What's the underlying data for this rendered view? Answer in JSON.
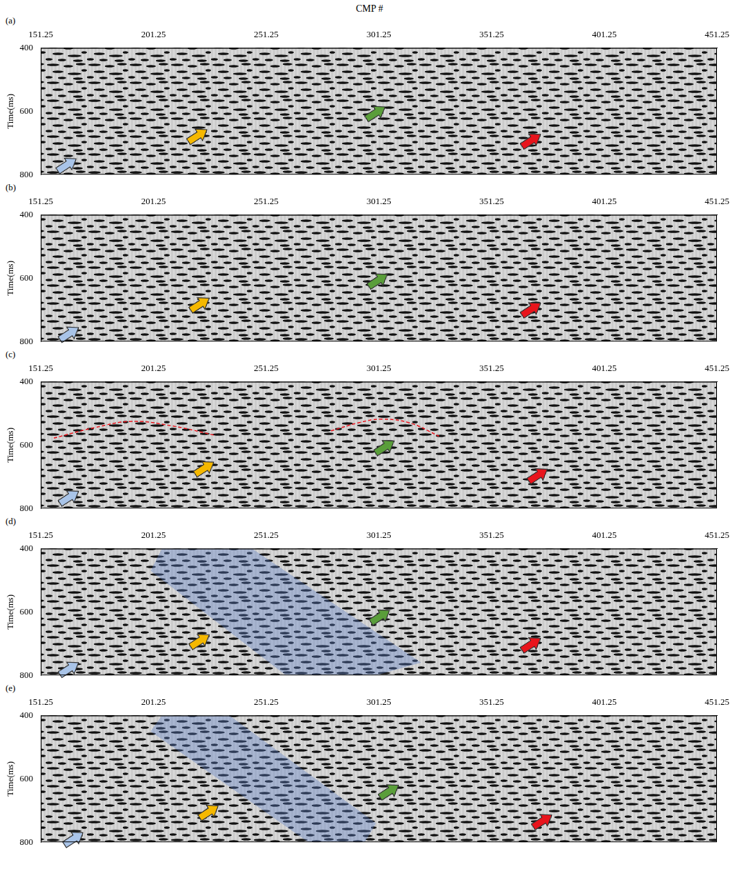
{
  "chart_data": [
    {
      "type": "seismic_section",
      "panel": "(a)",
      "x_label": "CMP #",
      "y_label": "Time(ms)",
      "xlim": [
        151.25,
        451.25
      ],
      "xticks": [
        151.25,
        201.25,
        251.25,
        301.25,
        351.25,
        401.25,
        451.25
      ],
      "ylim": [
        400,
        800
      ],
      "yticks": [
        400,
        600,
        800
      ],
      "grid": false,
      "arrows": [
        {
          "color": "#a9c4e8",
          "cmp": 167,
          "time": 750
        },
        {
          "color": "#f5b800",
          "cmp": 225,
          "time": 658
        },
        {
          "color": "#5a9e3a",
          "cmp": 304,
          "time": 586
        },
        {
          "color": "#e8141c",
          "cmp": 373,
          "time": 673
        }
      ]
    },
    {
      "type": "seismic_section",
      "panel": "(b)",
      "y_label": "Time(ms)",
      "xlim": [
        151.25,
        451.25
      ],
      "xticks": [
        151.25,
        201.25,
        251.25,
        301.25,
        351.25,
        401.25,
        451.25
      ],
      "ylim": [
        400,
        800
      ],
      "yticks": [
        400,
        600,
        800
      ],
      "grid": false,
      "arrows": [
        {
          "color": "#a9c4e8",
          "cmp": 168,
          "time": 756
        },
        {
          "color": "#f5b800",
          "cmp": 226,
          "time": 663
        },
        {
          "color": "#5a9e3a",
          "cmp": 305,
          "time": 588
        },
        {
          "color": "#e8141c",
          "cmp": 373,
          "time": 679
        }
      ]
    },
    {
      "type": "seismic_section",
      "panel": "(c)",
      "y_label": "Time(ms)",
      "xlim": [
        151.25,
        451.25
      ],
      "xticks": [
        151.25,
        201.25,
        251.25,
        301.25,
        351.25,
        401.25,
        451.25
      ],
      "ylim": [
        400,
        800
      ],
      "yticks": [
        400,
        600,
        800
      ],
      "grid": false,
      "arrows": [
        {
          "color": "#a9c4e8",
          "cmp": 168,
          "time": 746
        },
        {
          "color": "#f5b800",
          "cmp": 228,
          "time": 654
        },
        {
          "color": "#5a9e3a",
          "cmp": 308,
          "time": 587
        },
        {
          "color": "#e8141c",
          "cmp": 376,
          "time": 676
        }
      ],
      "curves": [
        {
          "color": "#e8141c",
          "line_style": "dashed",
          "x": [
            157,
            175,
            192,
            210,
            228
          ],
          "y": [
            578,
            545,
            525,
            540,
            568
          ]
        },
        {
          "color": "#e8141c",
          "line_style": "dashed",
          "x": [
            280,
            292,
            302,
            315,
            328
          ],
          "y": [
            555,
            530,
            518,
            530,
            572
          ]
        }
      ]
    },
    {
      "type": "seismic_section",
      "panel": "(d)",
      "y_label": "Time(ms)",
      "xlim": [
        151.25,
        451.25
      ],
      "xticks": [
        151.25,
        201.25,
        251.25,
        301.25,
        351.25,
        401.25,
        451.25
      ],
      "ylim": [
        400,
        800
      ],
      "yticks": [
        400,
        600,
        800
      ],
      "grid": false,
      "arrows": [
        {
          "color": "#a9c4e8",
          "cmp": 168,
          "time": 760
        },
        {
          "color": "#f5b800",
          "cmp": 226,
          "time": 672
        },
        {
          "color": "#5a9e3a",
          "cmp": 306,
          "time": 595
        },
        {
          "color": "#e8141c",
          "cmp": 373,
          "time": 683
        }
      ],
      "shaded": [
        {
          "color": "#5b7fc4",
          "x": [
            205,
            245,
            320,
            300,
            260,
            200
          ],
          "y": [
            400,
            400,
            760,
            800,
            800,
            470
          ]
        }
      ]
    },
    {
      "type": "seismic_section",
      "panel": "(e)",
      "y_label": "Time(ms)",
      "xlim": [
        151.25,
        451.25
      ],
      "xticks": [
        151.25,
        201.25,
        251.25,
        301.25,
        351.25,
        401.25,
        451.25
      ],
      "ylim": [
        400,
        800
      ],
      "yticks": [
        400,
        600,
        800
      ],
      "grid": false,
      "arrows": [
        {
          "color": "#a9c4e8",
          "cmp": 170,
          "time": 770
        },
        {
          "color": "#f5b800",
          "cmp": 230,
          "time": 685
        },
        {
          "color": "#5a9e3a",
          "cmp": 310,
          "time": 620
        },
        {
          "color": "#e8141c",
          "cmp": 378,
          "time": 714
        }
      ],
      "shaded": [
        {
          "color": "#5b7fc4",
          "x": [
            205,
            235,
            300,
            295,
            270,
            200
          ],
          "y": [
            400,
            400,
            740,
            800,
            800,
            450
          ]
        }
      ]
    }
  ]
}
